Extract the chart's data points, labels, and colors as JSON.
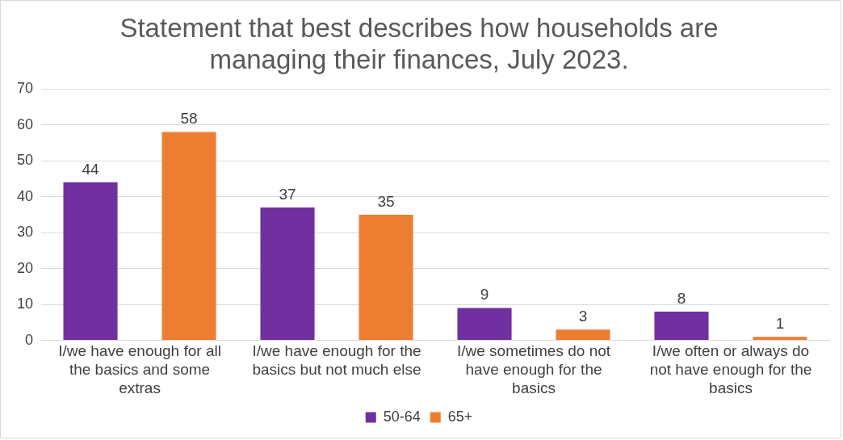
{
  "chart_data": {
    "type": "bar",
    "title": "Statement that best describes how households are managing their finances, July 2023.",
    "categories": [
      "I/we have enough for all the basics and some extras",
      "I/we have enough for the basics but not much else",
      "I/we sometimes do not have enough for the basics",
      "I/we often or always do not have enough for the basics"
    ],
    "series": [
      {
        "name": "50-64",
        "color": "#7030a0",
        "values": [
          44,
          37,
          9,
          8
        ]
      },
      {
        "name": "65+",
        "color": "#ed7d31",
        "values": [
          58,
          35,
          3,
          1
        ]
      }
    ],
    "ylim": [
      0,
      70
    ],
    "yticks": [
      0,
      10,
      20,
      30,
      40,
      50,
      60,
      70
    ],
    "grid": "y",
    "legend": "bottom",
    "data_labels": true
  }
}
